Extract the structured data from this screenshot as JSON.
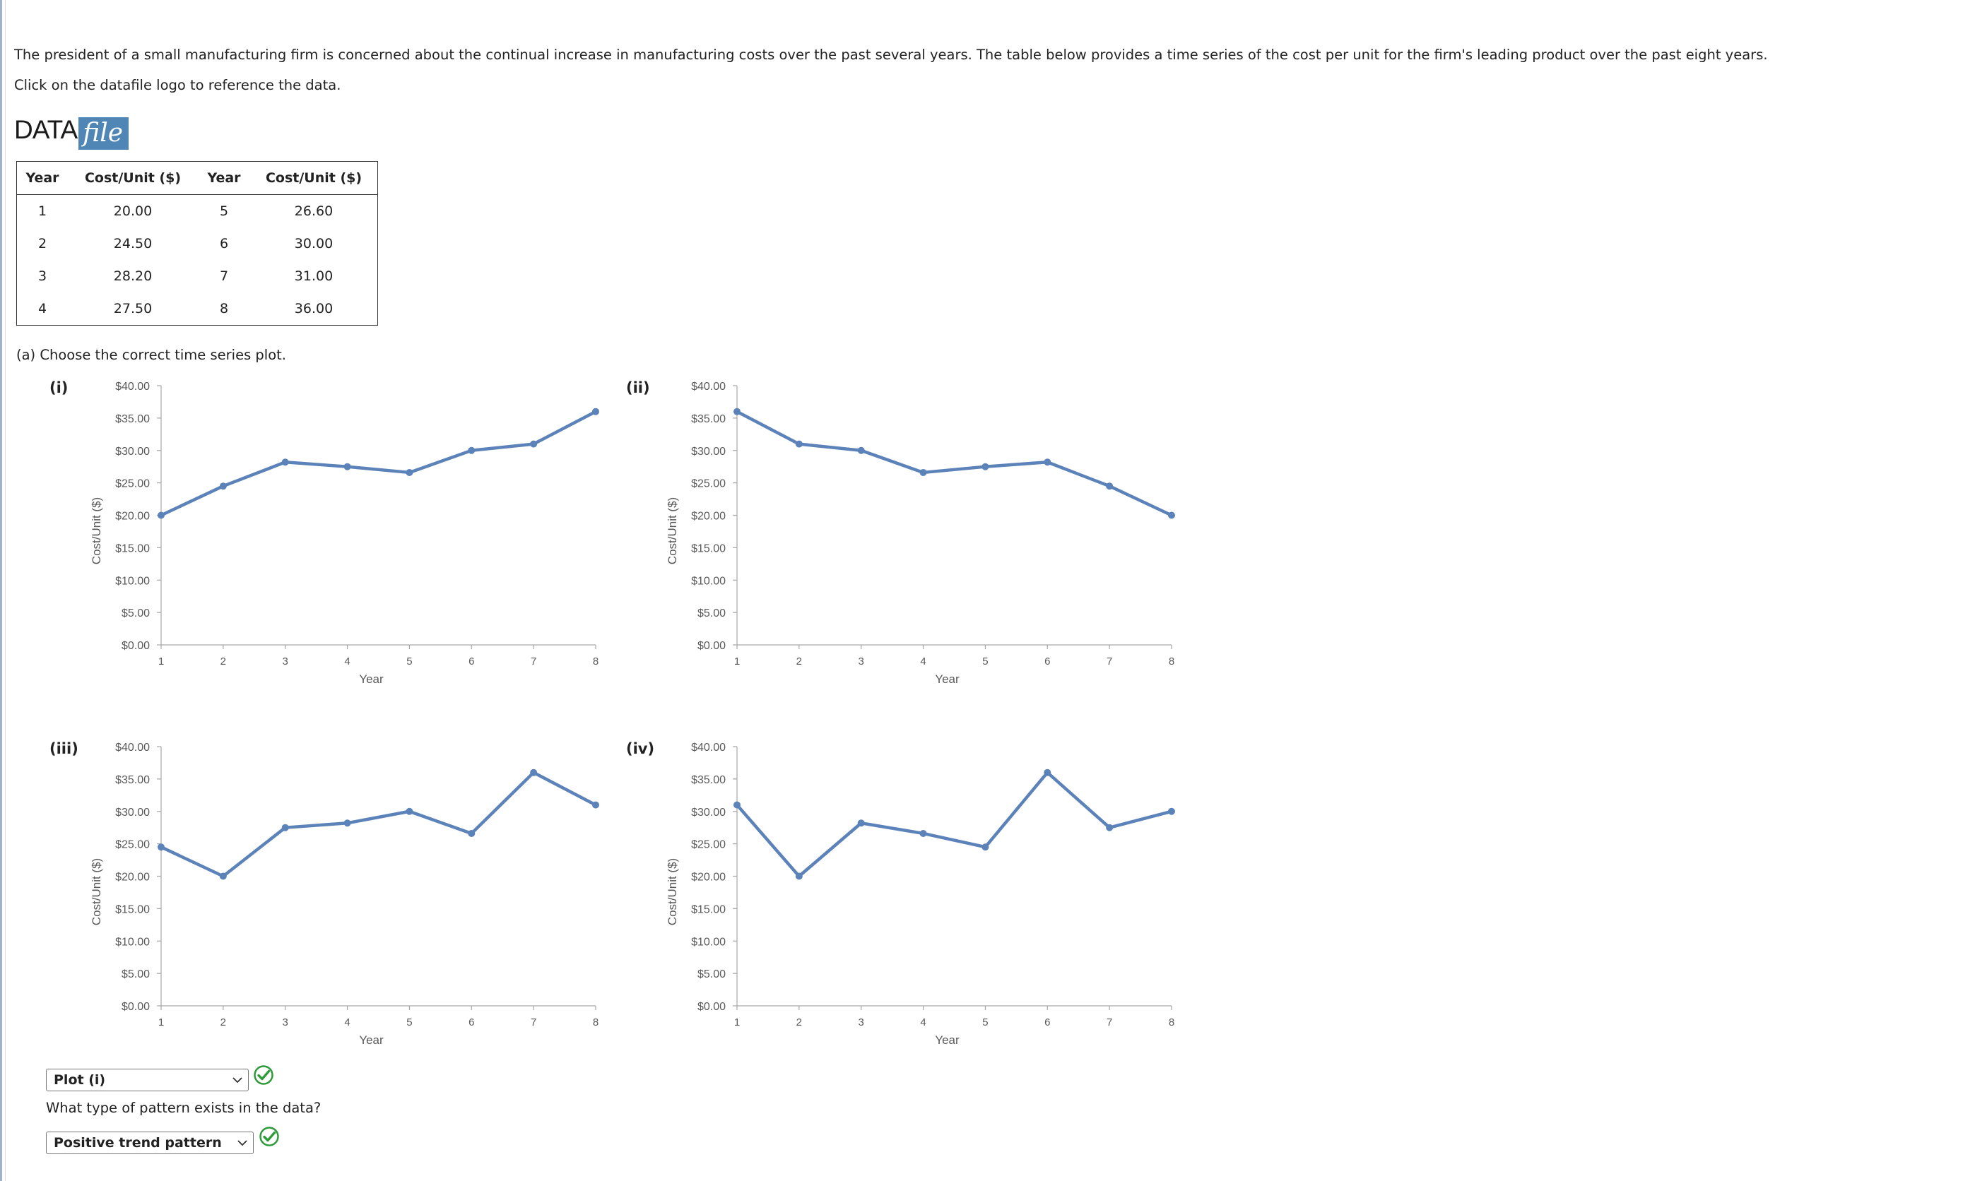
{
  "intro": {
    "paragraph": "The president of a small manufacturing firm is concerned about the continual increase in manufacturing costs over the past several years. The table below provides a time series of the cost per unit for the firm's leading product over the past eight years.",
    "instruction": "Click on the datafile logo to reference the data."
  },
  "logo": {
    "data_text": "DATA",
    "file_text": "file"
  },
  "table": {
    "headers": [
      "Year",
      "Cost/Unit ($)",
      "Year",
      "Cost/Unit ($)"
    ],
    "rows": [
      [
        "1",
        "20.00",
        "5",
        "26.60"
      ],
      [
        "2",
        "24.50",
        "6",
        "30.00"
      ],
      [
        "3",
        "28.20",
        "7",
        "31.00"
      ],
      [
        "4",
        "27.50",
        "8",
        "36.00"
      ]
    ]
  },
  "question_a": {
    "prompt": "(a) Choose the correct time series plot."
  },
  "chart_data": [
    {
      "label": "(i)",
      "type": "line",
      "x": [
        1,
        2,
        3,
        4,
        5,
        6,
        7,
        8
      ],
      "y": [
        20.0,
        24.5,
        28.2,
        27.5,
        26.6,
        30.0,
        31.0,
        36.0
      ],
      "xlabel": "Year",
      "ylabel": "Cost/Unit ($)",
      "ylim": [
        0,
        40
      ],
      "yticks": [
        "$0.00",
        "$5.00",
        "$10.00",
        "$15.00",
        "$20.00",
        "$25.00",
        "$30.00",
        "$35.00",
        "$40.00"
      ],
      "xticks": [
        "1",
        "2",
        "3",
        "4",
        "5",
        "6",
        "7",
        "8"
      ],
      "grid": false,
      "line_color": "#5b82b9"
    },
    {
      "label": "(ii)",
      "type": "line",
      "x": [
        1,
        2,
        3,
        4,
        5,
        6,
        7,
        8
      ],
      "y": [
        36.0,
        31.0,
        30.0,
        26.6,
        27.5,
        28.2,
        24.5,
        20.0
      ],
      "xlabel": "Year",
      "ylabel": "Cost/Unit ($)",
      "ylim": [
        0,
        40
      ],
      "yticks": [
        "$0.00",
        "$5.00",
        "$10.00",
        "$15.00",
        "$20.00",
        "$25.00",
        "$30.00",
        "$35.00",
        "$40.00"
      ],
      "xticks": [
        "1",
        "2",
        "3",
        "4",
        "5",
        "6",
        "7",
        "8"
      ],
      "grid": false,
      "line_color": "#5b82b9"
    },
    {
      "label": "(iii)",
      "type": "line",
      "x": [
        1,
        2,
        3,
        4,
        5,
        6,
        7,
        8
      ],
      "y": [
        24.5,
        20.0,
        27.5,
        28.2,
        30.0,
        26.6,
        36.0,
        31.0
      ],
      "xlabel": "Year",
      "ylabel": "Cost/Unit ($)",
      "ylim": [
        0,
        40
      ],
      "yticks": [
        "$0.00",
        "$5.00",
        "$10.00",
        "$15.00",
        "$20.00",
        "$25.00",
        "$30.00",
        "$35.00",
        "$40.00"
      ],
      "xticks": [
        "1",
        "2",
        "3",
        "4",
        "5",
        "6",
        "7",
        "8"
      ],
      "grid": false,
      "line_color": "#5b82b9"
    },
    {
      "label": "(iv)",
      "type": "line",
      "x": [
        1,
        2,
        3,
        4,
        5,
        6,
        7,
        8
      ],
      "y": [
        31.0,
        20.0,
        28.2,
        26.6,
        24.5,
        36.0,
        27.5,
        30.0
      ],
      "xlabel": "Year",
      "ylabel": "Cost/Unit ($)",
      "ylim": [
        0,
        40
      ],
      "yticks": [
        "$0.00",
        "$5.00",
        "$10.00",
        "$15.00",
        "$20.00",
        "$25.00",
        "$30.00",
        "$35.00",
        "$40.00"
      ],
      "xticks": [
        "1",
        "2",
        "3",
        "4",
        "5",
        "6",
        "7",
        "8"
      ],
      "grid": false,
      "line_color": "#5b82b9"
    }
  ],
  "answers": {
    "plot_select": {
      "value": "Plot (i)"
    },
    "pattern_prompt": "What type of pattern exists in the data?",
    "pattern_select": {
      "value": "Positive trend pattern"
    },
    "check_color": "#2e9b3a"
  }
}
